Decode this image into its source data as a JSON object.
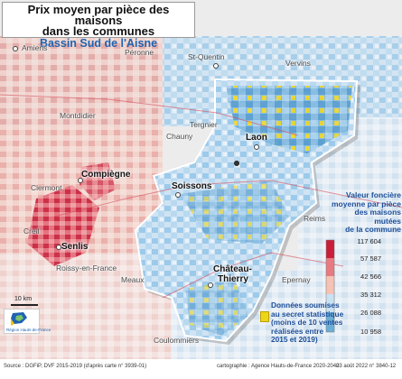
{
  "title": {
    "line1": "Prix moyen par pièce des maisons",
    "line2": "dans les communes",
    "subtitle": "Bassin Sud de l'Aisne"
  },
  "places": {
    "amiens": "Amiens",
    "peronne": "Péronne",
    "st_quentin": "St-Quentin",
    "vervins": "Vervins",
    "montdidier": "Montdidier",
    "tergnier": "Tergnier",
    "chauny": "Chauny",
    "clermont": "Clermont",
    "creil": "Creil",
    "roissy": "Roissy-en-France",
    "meaux": "Meaux",
    "reims": "Reims",
    "epernay": "Epernay",
    "coulommiers": "Coulommiers"
  },
  "cities": {
    "laon": "Laon",
    "soissons": "Soissons",
    "compiegne": "Compiègne",
    "senlis": "Senlis",
    "chateau_line1": "Château-",
    "chateau_line2": "Thierry"
  },
  "legend": {
    "title_line1": "Valeur foncière",
    "title_line2": "moyenne par pièce",
    "title_line3": "des maisons",
    "title_line4": "mutées",
    "title_line5": "de la commune",
    "classes": [
      {
        "value": "117 604",
        "color": "#c81e3a"
      },
      {
        "value": "57 587",
        "color": "#e87a82"
      },
      {
        "value": "42 566",
        "color": "#f6c2b4"
      },
      {
        "value": "35 312",
        "color": "#c9e2f2"
      },
      {
        "value": "26 088",
        "color": "#6aaed6"
      },
      {
        "value": "10 958",
        "color": ""
      }
    ],
    "secret_line1": "Données soumises",
    "secret_line2": "au secret statistique",
    "secret_line3": "(moins de 10 ventes",
    "secret_line4": "réalisées entre",
    "secret_line5": "2015 et 2019)",
    "secret_color": "#efd51a"
  },
  "scale": {
    "label": "10 km"
  },
  "logo": {
    "text": "Région Hauts-de-France"
  },
  "footer": {
    "source": "Source : DGFiP, DVF 2015-2019 (d'après carte n° 3939-01)",
    "credit": "cartographie : Agence Hauts-de-France 2020-2040",
    "date": "23 août 2022 n° 3840-12"
  }
}
